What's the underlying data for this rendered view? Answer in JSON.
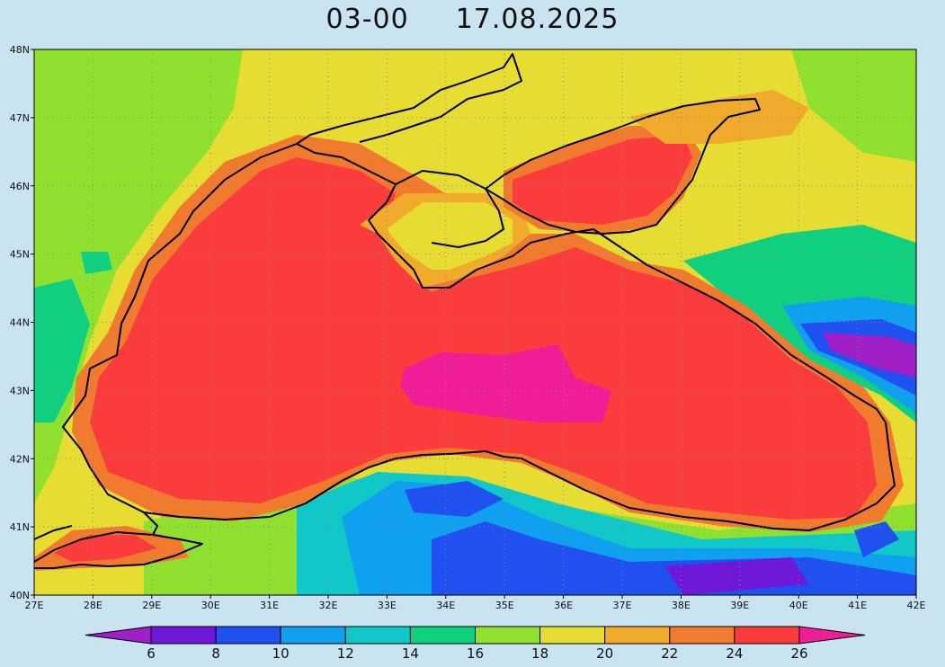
{
  "header": {
    "time_label": "03-00",
    "date_label": "17.08.2025"
  },
  "map": {
    "lon_range": [
      27,
      42
    ],
    "lat_range": [
      40,
      48
    ],
    "lon_ticks": [
      "27E",
      "28E",
      "29E",
      "30E",
      "31E",
      "32E",
      "33E",
      "34E",
      "35E",
      "36E",
      "37E",
      "38E",
      "39E",
      "40E",
      "41E",
      "42E"
    ],
    "lat_ticks": [
      "40N",
      "41N",
      "42N",
      "43N",
      "44N",
      "45N",
      "46N",
      "47N",
      "48N"
    ],
    "grid": "dotted",
    "coastline_color": "#000000"
  },
  "colorbar": {
    "labels": [
      "6",
      "8",
      "10",
      "12",
      "14",
      "16",
      "18",
      "20",
      "22",
      "24",
      "26"
    ],
    "colors": [
      "#a020c8",
      "#7018d8",
      "#2050f0",
      "#10a0f0",
      "#10c8c8",
      "#10d080",
      "#90e030",
      "#e6dc32",
      "#f0aa2c",
      "#f07a2e",
      "#fa3c3c",
      "#f01e96"
    ]
  },
  "chart_data": {
    "type": "heatmap",
    "title": "",
    "variable_units": "",
    "x_ticks": [
      "27E",
      "28E",
      "29E",
      "30E",
      "31E",
      "32E",
      "33E",
      "34E",
      "35E",
      "36E",
      "37E",
      "38E",
      "39E",
      "40E",
      "41E",
      "42E"
    ],
    "y_ticks": [
      "40N",
      "41N",
      "42N",
      "43N",
      "44N",
      "45N",
      "46N",
      "47N",
      "48N"
    ],
    "color_levels": [
      6,
      8,
      10,
      12,
      14,
      16,
      18,
      20,
      22,
      24,
      26
    ],
    "regions": [
      {
        "name": "open-sea",
        "level": "24-26"
      },
      {
        "name": "central-warm-core",
        "level": ">26"
      },
      {
        "name": "sea-of-azov",
        "level": "24-26"
      },
      {
        "name": "crimea-peninsula",
        "level": "20-22"
      },
      {
        "name": "sea-of-marmara",
        "level": "24-26"
      },
      {
        "name": "anatolia-cold-band",
        "level": "8-14"
      },
      {
        "name": "caucasus-cold-patch",
        "level": "6-10"
      },
      {
        "name": "steppe-north",
        "level": "18-20"
      }
    ]
  }
}
